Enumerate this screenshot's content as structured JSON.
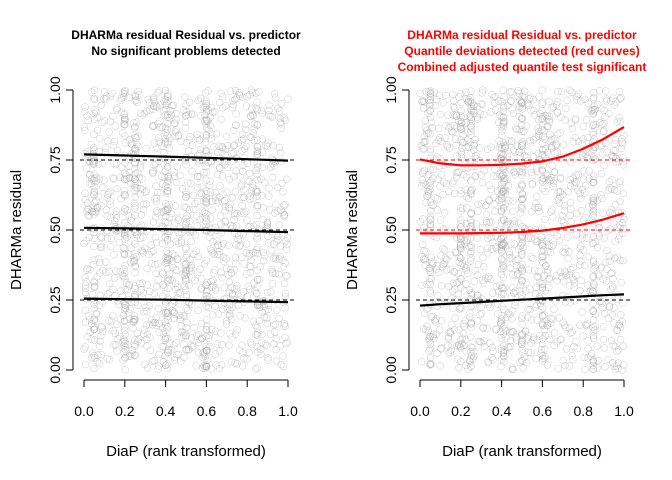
{
  "colors": {
    "ok": "#000000",
    "problem": "#ff0000",
    "points": "#9a9a9a"
  },
  "chart_data": [
    {
      "type": "scatter",
      "title": [
        "DHARMa residual Residual vs. predictor",
        "No significant problems detected"
      ],
      "title_color": "ok",
      "xlabel": "DiaP (rank transformed)",
      "ylabel": "DHARMa residual",
      "xlim": [
        0,
        1
      ],
      "ylim": [
        0,
        1
      ],
      "xticks": [
        "0.0",
        "0.2",
        "0.4",
        "0.6",
        "0.8",
        "1.0"
      ],
      "yticks": [
        "0.00",
        "0.25",
        "0.50",
        "0.75",
        "1.00"
      ],
      "reference_lines": [
        0.25,
        0.5,
        0.75
      ],
      "points": "about 1500 open circles spread uniformly over the plot",
      "series": [
        {
          "quantile": 0.25,
          "color": "ok",
          "x": [
            0,
            0.2,
            0.4,
            0.6,
            0.8,
            1.0
          ],
          "y": [
            0.255,
            0.253,
            0.251,
            0.248,
            0.245,
            0.242
          ]
        },
        {
          "quantile": 0.5,
          "color": "ok",
          "x": [
            0,
            0.2,
            0.4,
            0.6,
            0.8,
            1.0
          ],
          "y": [
            0.508,
            0.506,
            0.503,
            0.5,
            0.496,
            0.492
          ]
        },
        {
          "quantile": 0.75,
          "color": "ok",
          "x": [
            0,
            0.2,
            0.4,
            0.6,
            0.8,
            1.0
          ],
          "y": [
            0.77,
            0.766,
            0.762,
            0.758,
            0.753,
            0.748
          ]
        }
      ]
    },
    {
      "type": "scatter",
      "title": [
        "DHARMa residual Residual vs. predictor",
        "Quantile deviations detected (red curves)",
        "Combined adjusted quantile test significant"
      ],
      "title_color": "problem",
      "xlabel": "DiaP (rank transformed)",
      "ylabel": "DHARMa residual",
      "xlim": [
        0,
        1
      ],
      "ylim": [
        0,
        1
      ],
      "xticks": [
        "0.0",
        "0.2",
        "0.4",
        "0.6",
        "0.8",
        "1.0"
      ],
      "yticks": [
        "0.00",
        "0.25",
        "0.50",
        "0.75",
        "1.00"
      ],
      "reference_lines": [
        0.25,
        0.5,
        0.75
      ],
      "points": "about 1500 open circles spread uniformly over the plot",
      "series": [
        {
          "quantile": 0.25,
          "color": "ok",
          "x": [
            0,
            0.1,
            0.2,
            0.3,
            0.4,
            0.5,
            0.6,
            0.7,
            0.8,
            0.9,
            1.0
          ],
          "y": [
            0.23,
            0.235,
            0.239,
            0.243,
            0.247,
            0.251,
            0.255,
            0.259,
            0.263,
            0.267,
            0.27
          ]
        },
        {
          "quantile": 0.5,
          "color": "problem",
          "x": [
            0,
            0.1,
            0.2,
            0.3,
            0.4,
            0.5,
            0.6,
            0.7,
            0.8,
            0.9,
            1.0
          ],
          "y": [
            0.488,
            0.488,
            0.488,
            0.489,
            0.49,
            0.493,
            0.498,
            0.507,
            0.52,
            0.538,
            0.56
          ]
        },
        {
          "quantile": 0.75,
          "color": "problem",
          "x": [
            0,
            0.1,
            0.2,
            0.3,
            0.4,
            0.5,
            0.6,
            0.7,
            0.8,
            0.9,
            1.0
          ],
          "y": [
            0.752,
            0.738,
            0.731,
            0.731,
            0.733,
            0.737,
            0.745,
            0.762,
            0.79,
            0.825,
            0.868
          ]
        }
      ]
    }
  ]
}
